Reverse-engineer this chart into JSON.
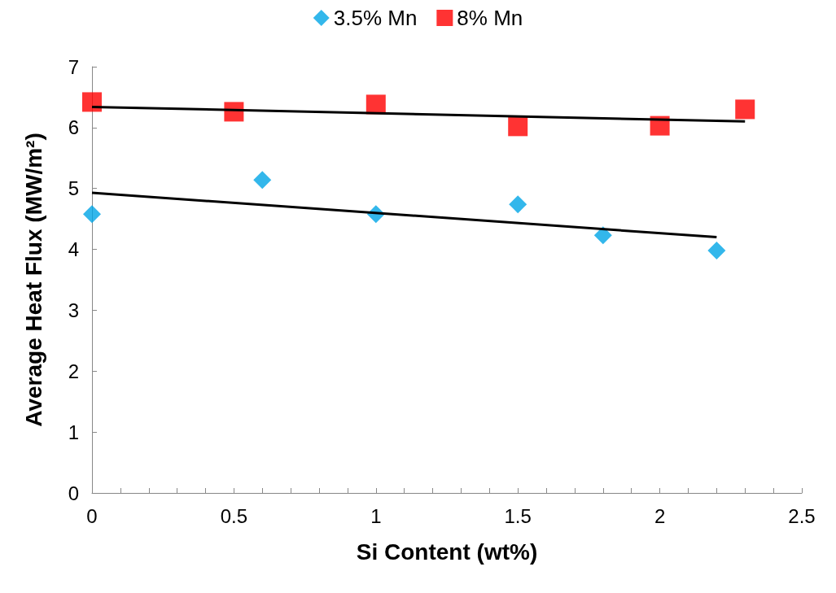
{
  "chart_data": {
    "type": "scatter",
    "xlabel": "Si Content (wt%)",
    "ylabel": "Average Heat Flux (MW/m²)",
    "xlim": [
      0,
      2.5
    ],
    "xticks": [
      0,
      {
        "value": 0.1,
        "label": null
      },
      {
        "value": 0.2,
        "label": null
      },
      {
        "value": 0.3,
        "label": null
      },
      {
        "value": 0.4,
        "label": null
      },
      0.5,
      {
        "value": 0.6,
        "label": null
      },
      {
        "value": 0.7,
        "label": null
      },
      {
        "value": 0.8,
        "label": null
      },
      {
        "value": 0.9,
        "label": null
      },
      1,
      {
        "value": 1.1,
        "label": null
      },
      {
        "value": 1.2,
        "label": null
      },
      {
        "value": 1.3,
        "label": null
      },
      {
        "value": 1.4,
        "label": null
      },
      1.5,
      {
        "value": 1.6,
        "label": null
      },
      {
        "value": 1.7,
        "label": null
      },
      {
        "value": 1.8,
        "label": null
      },
      {
        "value": 1.9,
        "label": null
      },
      2,
      {
        "value": 2.1,
        "label": null
      },
      {
        "value": 2.2,
        "label": null
      },
      {
        "value": 2.3,
        "label": null
      },
      {
        "value": 2.4,
        "label": null
      },
      2.5
    ],
    "ylim": [
      0,
      7
    ],
    "yticks": [
      0,
      1,
      2,
      3,
      4,
      5,
      6,
      7
    ],
    "grid": false,
    "legend": "top",
    "series": [
      {
        "name": "3.5% Mn",
        "color": "#00a5e6",
        "marker": "diamond",
        "x": [
          0,
          0.6,
          1,
          1.5,
          1.8,
          2.2
        ],
        "values": [
          4.58,
          5.14,
          4.58,
          4.74,
          4.23,
          3.98
        ]
      },
      {
        "name": "8% Mn",
        "color": "#ff0000",
        "marker": "square",
        "x": [
          0,
          0.5,
          1,
          1.5,
          2,
          2.3
        ],
        "values": [
          6.42,
          6.26,
          6.38,
          6.02,
          6.03,
          6.3
        ]
      },
      {
        "type": "line",
        "color": "#000000",
        "marker": "none",
        "x": [
          0,
          2.2
        ],
        "values": [
          4.93,
          4.2
        ]
      },
      {
        "type": "line",
        "color": "#000000",
        "marker": "none",
        "x": [
          0,
          2.3
        ],
        "values": [
          6.34,
          6.1
        ]
      }
    ]
  }
}
